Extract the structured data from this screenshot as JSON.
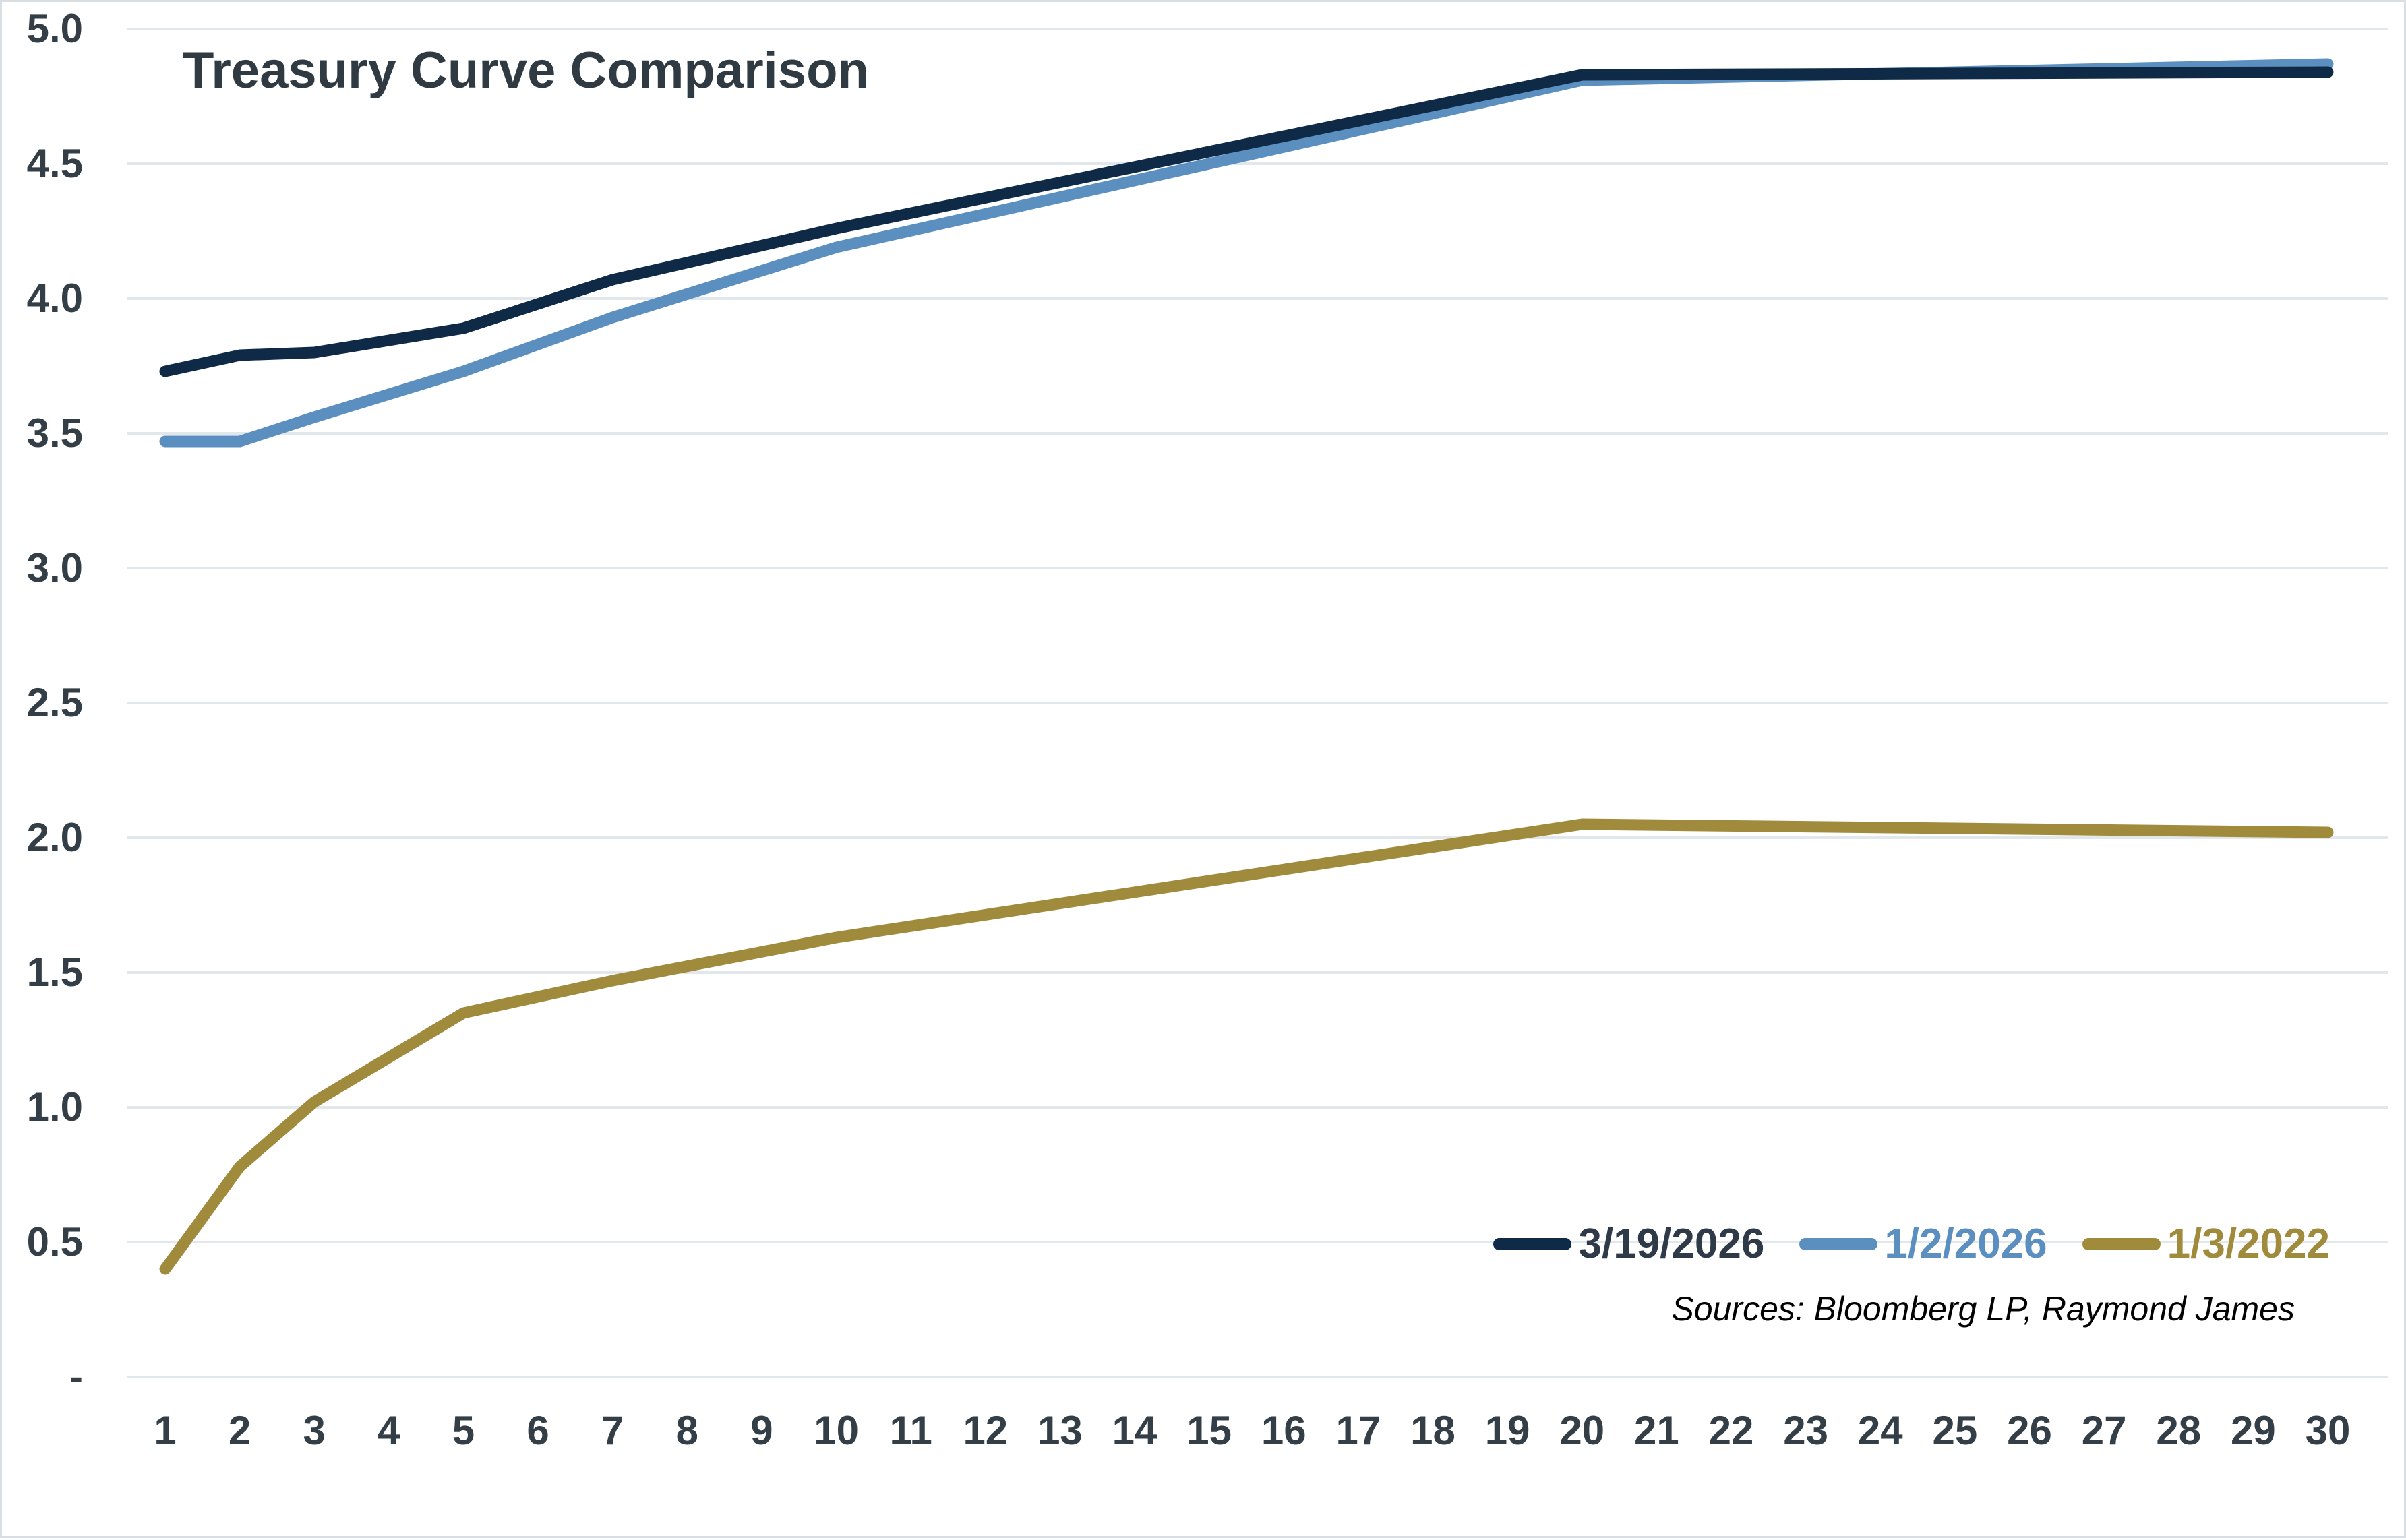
{
  "chart_data": {
    "type": "line",
    "title": "Treasury Curve Comparison",
    "xlabel": "",
    "ylabel": "",
    "xlim": [
      1,
      30
    ],
    "ylim": [
      0,
      5
    ],
    "grid": "horizontal",
    "legend_position": "bottom-right-inside",
    "x_ticks": [
      "1",
      "2",
      "3",
      "4",
      "5",
      "6",
      "7",
      "8",
      "9",
      "10",
      "11",
      "12",
      "13",
      "14",
      "15",
      "16",
      "17",
      "18",
      "19",
      "20",
      "21",
      "22",
      "23",
      "24",
      "25",
      "26",
      "27",
      "28",
      "29",
      "30"
    ],
    "y_ticks": [
      {
        "label": "5.0",
        "value": 5.0
      },
      {
        "label": "4.5",
        "value": 4.5
      },
      {
        "label": "4.0",
        "value": 4.0
      },
      {
        "label": "3.5",
        "value": 3.5
      },
      {
        "label": "3.0",
        "value": 3.0
      },
      {
        "label": "2.5",
        "value": 2.5
      },
      {
        "label": "2.0",
        "value": 2.0
      },
      {
        "label": "1.5",
        "value": 1.5
      },
      {
        "label": "1.0",
        "value": 1.0
      },
      {
        "label": "0.5",
        "value": 0.5
      },
      {
        "label": "-",
        "value": 0.0
      }
    ],
    "series": [
      {
        "name": "3/19/2026",
        "color": "#0e2a47",
        "x": [
          1,
          2,
          3,
          5,
          7,
          10,
          20,
          30
        ],
        "values": [
          3.73,
          3.79,
          3.8,
          3.89,
          4.07,
          4.26,
          4.83,
          4.84
        ]
      },
      {
        "name": "1/2/2026",
        "color": "#5b8fc0",
        "x": [
          1,
          2,
          3,
          5,
          7,
          10,
          20,
          30
        ],
        "values": [
          3.47,
          3.47,
          3.56,
          3.73,
          3.93,
          4.19,
          4.81,
          4.87
        ]
      },
      {
        "name": "1/3/2022",
        "color": "#a08b3d",
        "x": [
          1,
          2,
          3,
          5,
          7,
          10,
          20,
          30
        ],
        "values": [
          0.4,
          0.78,
          1.02,
          1.35,
          1.47,
          1.63,
          2.05,
          2.02
        ]
      }
    ]
  },
  "source_note": "Sources: Bloomberg LP, Raymond James",
  "colors": {
    "gridline": "#e2e7eb",
    "axis_text": "#333e47",
    "title_text": "#2f3a42",
    "background": "#ffffff",
    "page_border": "#d9dee3"
  }
}
